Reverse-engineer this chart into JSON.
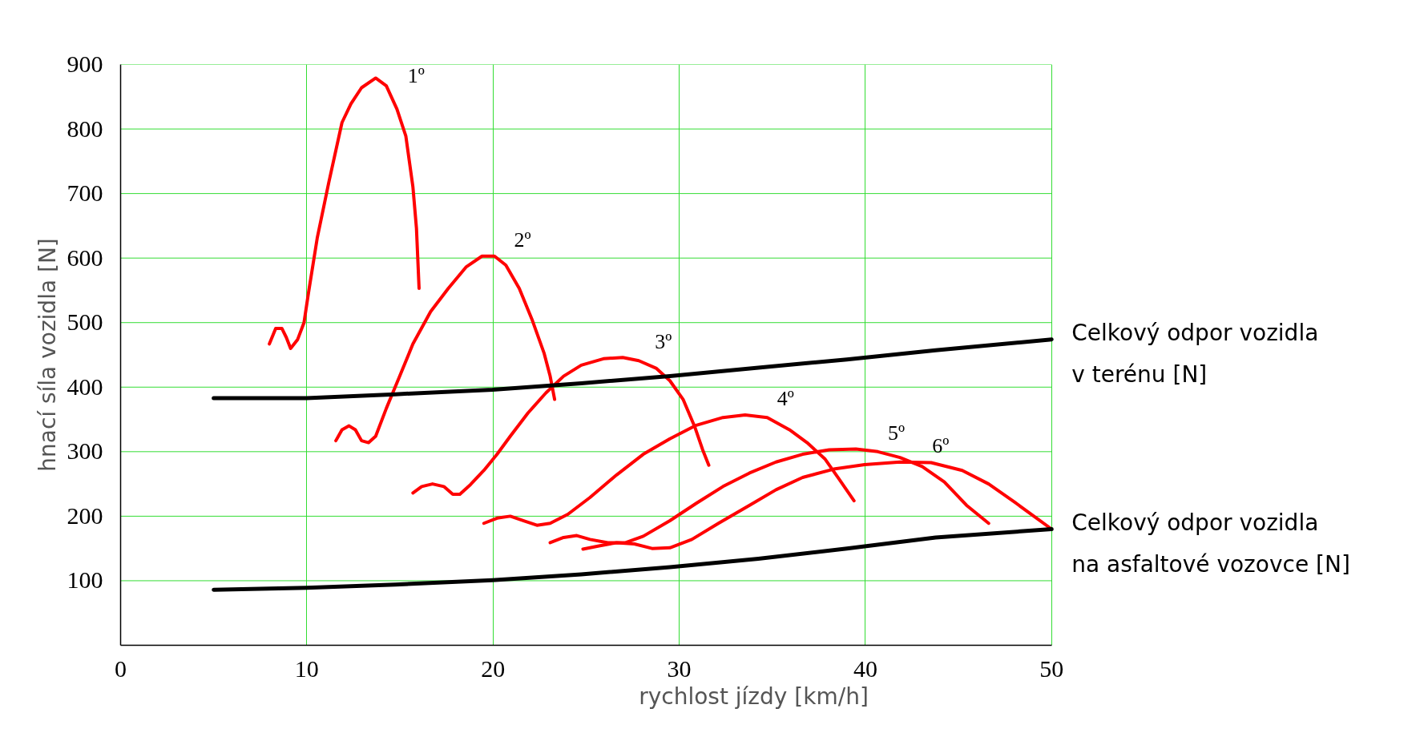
{
  "chart_data": {
    "type": "line",
    "xlabel": "rychlost jízdy [km/h]",
    "ylabel": "hnací síla vozidla [N]",
    "xlim": [
      0,
      50
    ],
    "ylim": [
      0,
      900
    ],
    "xticks": [
      0,
      10,
      20,
      30,
      40,
      50
    ],
    "yticks": [
      100,
      200,
      300,
      400,
      500,
      600,
      700,
      800,
      900
    ],
    "grid": true,
    "marker": "none",
    "line_style": "solid",
    "series": [
      {
        "name": "1º",
        "color": "#ff0000",
        "x": [
          7.99,
          8.33,
          8.66,
          8.9,
          9.13,
          9.51,
          9.85,
          10.09,
          10.56,
          11.18,
          11.89,
          12.37,
          12.94,
          13.7,
          14.27,
          14.84,
          15.32,
          15.7,
          15.89,
          16.03
        ],
        "values": [
          467,
          491,
          491,
          477,
          460,
          474,
          500,
          546,
          631,
          717,
          810,
          839,
          864,
          879,
          867,
          831,
          789,
          710,
          646,
          553
        ]
      },
      {
        "name": "2º",
        "color": "#ff0000",
        "x": [
          11.56,
          11.89,
          12.27,
          12.61,
          12.94,
          13.32,
          13.7,
          14.27,
          14.99,
          15.7,
          16.65,
          17.6,
          18.55,
          19.41,
          20.08,
          20.69,
          21.41,
          22.12,
          22.74,
          23.07,
          23.31
        ],
        "values": [
          317,
          334,
          340,
          334,
          317,
          314,
          324,
          367,
          417,
          467,
          517,
          553,
          586,
          603,
          603,
          589,
          553,
          503,
          453,
          417,
          381
        ]
      },
      {
        "name": "3º",
        "color": "#ff0000",
        "x": [
          15.7,
          16.17,
          16.75,
          17.36,
          17.84,
          18.22,
          18.79,
          19.51,
          20.22,
          20.93,
          21.88,
          22.84,
          23.79,
          24.74,
          25.93,
          26.97,
          27.83,
          28.78,
          29.5,
          30.21,
          30.83,
          31.26,
          31.59
        ],
        "values": [
          236,
          246,
          250,
          246,
          234,
          234,
          249,
          271,
          296,
          324,
          360,
          391,
          417,
          434,
          444,
          446,
          441,
          429,
          410,
          381,
          339,
          303,
          279
        ]
      },
      {
        "name": "4º",
        "color": "#ff0000",
        "x": [
          19.51,
          20.22,
          20.93,
          21.65,
          22.36,
          23.07,
          24.02,
          25.21,
          26.64,
          28.07,
          29.5,
          30.92,
          32.35,
          33.54,
          34.73,
          35.92,
          36.87,
          37.82,
          38.53,
          39.39
        ],
        "values": [
          189,
          197,
          200,
          193,
          186,
          189,
          203,
          229,
          264,
          296,
          320,
          341,
          353,
          357,
          353,
          334,
          314,
          289,
          260,
          224
        ]
      },
      {
        "name": "5º",
        "color": "#ff0000",
        "x": [
          23.07,
          23.79,
          24.5,
          25.21,
          26.17,
          27.12,
          28.07,
          29.5,
          30.92,
          32.35,
          33.78,
          35.2,
          36.63,
          38.06,
          39.49,
          40.67,
          41.86,
          43.05,
          44.24,
          45.43,
          46.62
        ],
        "values": [
          159,
          167,
          170,
          164,
          159,
          159,
          169,
          193,
          220,
          246,
          267,
          284,
          296,
          303,
          304,
          300,
          291,
          277,
          253,
          217,
          189
        ]
      },
      {
        "name": "6º",
        "color": "#ff0000",
        "x": [
          24.83,
          25.69,
          26.64,
          27.59,
          28.54,
          29.5,
          30.68,
          32.11,
          33.78,
          35.2,
          36.63,
          38.3,
          39.96,
          41.86,
          43.53,
          45.2,
          46.62,
          48.05,
          49.24,
          50.0
        ],
        "values": [
          149,
          154,
          159,
          157,
          150,
          151,
          164,
          189,
          217,
          241,
          260,
          273,
          280,
          284,
          283,
          271,
          250,
          221,
          196,
          180
        ]
      },
      {
        "name": "Celkový odpor vozidla\nv terénu [N]",
        "color": "#000000",
        "x": [
          5.0,
          9.99,
          14.75,
          19.98,
          24.74,
          29.5,
          34.25,
          39.01,
          43.77,
          50.0
        ],
        "values": [
          383,
          383,
          389,
          396,
          406,
          417,
          430,
          443,
          457,
          474
        ]
      },
      {
        "name": "Celkový odpor vozidla\nna asfaltové vozovce [N]",
        "color": "#000000",
        "x": [
          5.0,
          9.99,
          14.75,
          19.98,
          24.74,
          29.5,
          34.25,
          39.01,
          43.77,
          50.0
        ],
        "values": [
          86,
          89,
          94,
          101,
          110,
          121,
          134,
          150,
          167,
          180
        ]
      }
    ]
  }
}
